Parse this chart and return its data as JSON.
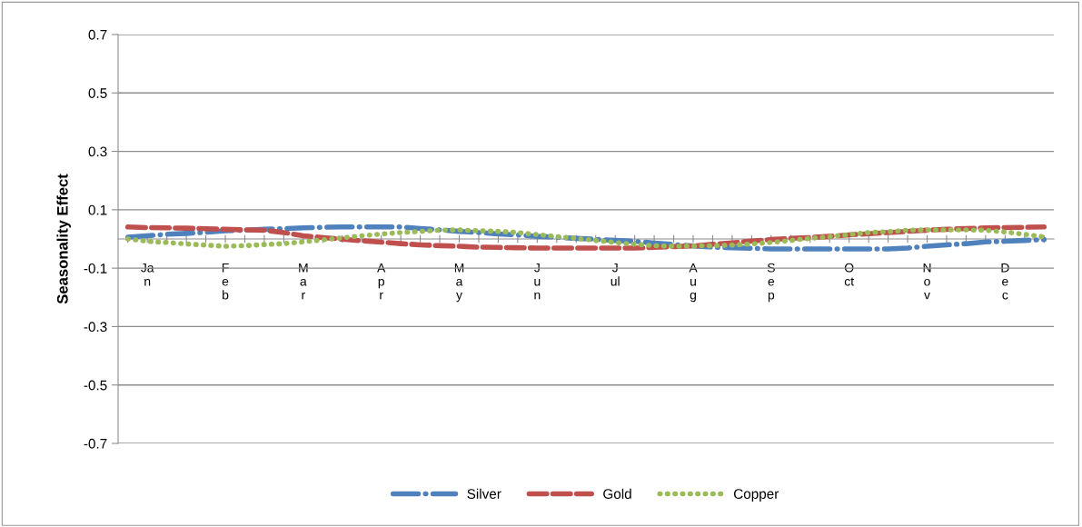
{
  "chart_data": {
    "type": "line",
    "ylabel": "Seasonality Effect",
    "categories": [
      null,
      "Ja\nn",
      null,
      null,
      null,
      "F\ne\nb",
      null,
      null,
      null,
      "M\na\nr",
      null,
      null,
      null,
      "A\np\nr",
      null,
      null,
      null,
      "M\na\ny",
      null,
      null,
      null,
      "J\nu\nn",
      null,
      null,
      null,
      "J\nul",
      null,
      null,
      null,
      "A\nu\ng",
      null,
      null,
      null,
      "S\ne\np",
      null,
      null,
      null,
      "O\nct",
      null,
      null,
      null,
      "N\no\nv",
      null,
      null,
      null,
      "D\ne\nc",
      null,
      null
    ],
    "series": [
      {
        "name": "Silver",
        "color": "#4f81bd",
        "line_style": "dashdot",
        "values": [
          0.006,
          0.011,
          0.016,
          0.019,
          0.023,
          0.028,
          0.03,
          0.033,
          0.035,
          0.038,
          0.04,
          0.041,
          0.041,
          0.041,
          0.041,
          0.036,
          0.031,
          0.026,
          0.022,
          0.017,
          0.014,
          0.009,
          0.006,
          0.002,
          -0.001,
          -0.005,
          -0.008,
          -0.014,
          -0.019,
          -0.024,
          -0.028,
          -0.03,
          -0.032,
          -0.034,
          -0.034,
          -0.034,
          -0.034,
          -0.034,
          -0.034,
          -0.034,
          -0.031,
          -0.025,
          -0.02,
          -0.016,
          -0.01,
          -0.008,
          -0.005,
          -0.002
        ]
      },
      {
        "name": "Gold",
        "color": "#c0504d",
        "line_style": "dashed",
        "values": [
          0.041,
          0.039,
          0.038,
          0.037,
          0.035,
          0.033,
          0.031,
          0.03,
          0.022,
          0.011,
          0.005,
          -0.001,
          -0.006,
          -0.011,
          -0.016,
          -0.02,
          -0.023,
          -0.025,
          -0.028,
          -0.029,
          -0.03,
          -0.031,
          -0.031,
          -0.031,
          -0.031,
          -0.031,
          -0.031,
          -0.029,
          -0.026,
          -0.024,
          -0.018,
          -0.013,
          -0.007,
          -0.002,
          0.002,
          0.005,
          0.009,
          0.014,
          0.018,
          0.022,
          0.026,
          0.03,
          0.033,
          0.036,
          0.038,
          0.039,
          0.04,
          0.041
        ]
      },
      {
        "name": "Copper",
        "color": "#9bbb59",
        "line_style": "dotted",
        "values": [
          0.0,
          -0.008,
          -0.012,
          -0.017,
          -0.021,
          -0.025,
          -0.023,
          -0.019,
          -0.016,
          -0.01,
          -0.003,
          0.004,
          0.011,
          0.017,
          0.022,
          0.026,
          0.03,
          0.031,
          0.028,
          0.026,
          0.022,
          0.015,
          0.008,
          0.002,
          -0.005,
          -0.012,
          -0.018,
          -0.023,
          -0.025,
          -0.024,
          -0.023,
          -0.021,
          -0.017,
          -0.012,
          -0.005,
          0.002,
          0.008,
          0.015,
          0.022,
          0.025,
          0.03,
          0.031,
          0.031,
          0.031,
          0.03,
          0.024,
          0.016,
          0.007
        ]
      }
    ],
    "ylim": [
      -0.7,
      0.7
    ],
    "yticks": [
      -0.7,
      -0.5,
      -0.3,
      -0.1,
      0.1,
      0.3,
      0.5,
      0.7
    ],
    "grid": "y",
    "legend": "bottom",
    "marker": "none"
  }
}
